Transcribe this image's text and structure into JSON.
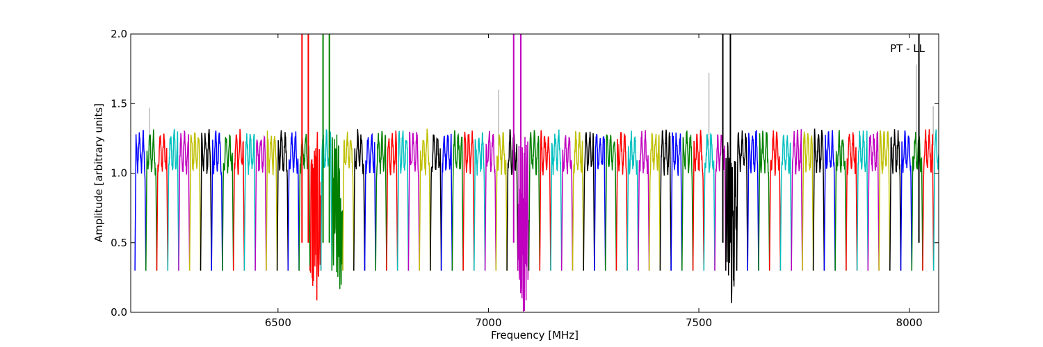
{
  "chart_data": {
    "type": "line",
    "title": "",
    "annotation": "PT - LL",
    "xlabel": "Frequency [MHz]",
    "ylabel": "Amplitude [arbitrary units]",
    "xlim": [
      6150,
      8070
    ],
    "ylim": [
      0.0,
      2.0
    ],
    "x_ticks": [
      6500,
      7000,
      7500,
      8000
    ],
    "x_tick_labels": [
      "6500",
      "7000",
      "7500",
      "8000"
    ],
    "y_ticks": [
      0.0,
      0.5,
      1.0,
      1.5,
      2.0
    ],
    "y_tick_labels": [
      "0.0",
      "0.5",
      "1.0",
      "1.5",
      "2.0"
    ],
    "grid": false,
    "legend": "none",
    "color_cycle": [
      "#0000ff",
      "#008000",
      "#ff0000",
      "#00bfbf",
      "#bf00bf",
      "#bfbf00",
      "#000000"
    ],
    "band_width_mhz": 26,
    "band_start_mhz": 6160,
    "band_peak_level": 1.25,
    "band_dip_level": 0.3,
    "noisy_bands": [
      {
        "center": 6563,
        "color": "#ff0000",
        "min": 0.06,
        "max": 2.0
      },
      {
        "center": 6615,
        "color": "#008000",
        "min": 0.09,
        "max": 2.0
      },
      {
        "center": 7072,
        "color": "#bf00bf",
        "min": 0.0,
        "max": 2.0
      },
      {
        "center": 7570,
        "color": "#000000",
        "min": 0.0,
        "max": 2.0
      }
    ],
    "spikes": [
      {
        "x": 6557,
        "color": "#ff0000"
      },
      {
        "x": 6572,
        "color": "#ff0000"
      },
      {
        "x": 6607,
        "color": "#008000"
      },
      {
        "x": 6622,
        "color": "#008000"
      },
      {
        "x": 7060,
        "color": "#bf00bf"
      },
      {
        "x": 7077,
        "color": "#bf00bf"
      },
      {
        "x": 7557,
        "color": "#000000"
      },
      {
        "x": 7575,
        "color": "#000000"
      },
      {
        "x": 8023,
        "color": "#000000"
      }
    ],
    "gray_overlay_peaks": [
      {
        "x": 6195,
        "y": 1.47
      },
      {
        "x": 7024,
        "y": 1.6
      },
      {
        "x": 7524,
        "y": 1.72
      },
      {
        "x": 8017,
        "y": 1.78
      },
      {
        "x": 8057,
        "y": 1.48
      }
    ]
  }
}
